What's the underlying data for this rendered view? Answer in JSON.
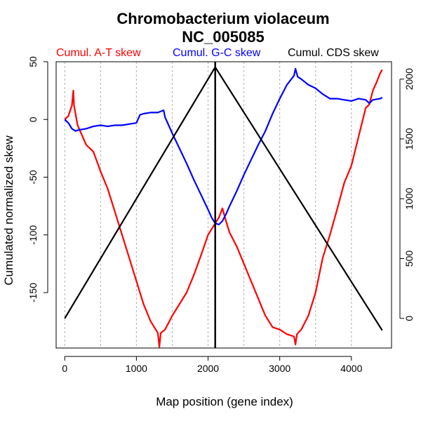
{
  "chart_data": {
    "type": "line",
    "title_line1": "Chromobacterium violaceum",
    "title_line2": "NC_005085",
    "xlabel": "Map position (gene index)",
    "ylabel": "Cumulated normalized skew",
    "xlim": [
      -120,
      4560
    ],
    "ylim": [
      -198,
      50
    ],
    "y2lim": [
      -248,
      2145
    ],
    "x_ticks": [
      0,
      1000,
      2000,
      3000,
      4000
    ],
    "y_ticks": [
      50,
      0,
      -50,
      -100,
      -150
    ],
    "y2_ticks": [
      0,
      500,
      1000,
      1500,
      2000
    ],
    "grid_x": [
      0,
      500,
      1000,
      1500,
      2000,
      2500,
      3000,
      3500,
      4000
    ],
    "origin_x": 2100,
    "colors": {
      "at": "#ff0000",
      "gc": "#0000ff",
      "cds": "#000000",
      "grid": "#b0b0b0"
    },
    "series": [
      {
        "name": "Cumul. A-T skew",
        "color": "#ff0000",
        "axis": "left",
        "points": [
          [
            0,
            0
          ],
          [
            50,
            3
          ],
          [
            100,
            12
          ],
          [
            120,
            25
          ],
          [
            130,
            12
          ],
          [
            180,
            -5
          ],
          [
            300,
            -22
          ],
          [
            400,
            -28
          ],
          [
            500,
            -45
          ],
          [
            600,
            -60
          ],
          [
            700,
            -80
          ],
          [
            800,
            -100
          ],
          [
            900,
            -120
          ],
          [
            1000,
            -140
          ],
          [
            1100,
            -160
          ],
          [
            1200,
            -175
          ],
          [
            1300,
            -185
          ],
          [
            1320,
            -197
          ],
          [
            1340,
            -185
          ],
          [
            1400,
            -182
          ],
          [
            1500,
            -170
          ],
          [
            1600,
            -160
          ],
          [
            1700,
            -150
          ],
          [
            1800,
            -135
          ],
          [
            1900,
            -118
          ],
          [
            2000,
            -100
          ],
          [
            2100,
            -90
          ],
          [
            2150,
            -85
          ],
          [
            2200,
            -77
          ],
          [
            2250,
            -88
          ],
          [
            2300,
            -98
          ],
          [
            2400,
            -110
          ],
          [
            2500,
            -125
          ],
          [
            2600,
            -140
          ],
          [
            2700,
            -155
          ],
          [
            2800,
            -170
          ],
          [
            2900,
            -180
          ],
          [
            3000,
            -182
          ],
          [
            3100,
            -186
          ],
          [
            3200,
            -188
          ],
          [
            3220,
            -195
          ],
          [
            3240,
            -186
          ],
          [
            3300,
            -182
          ],
          [
            3400,
            -170
          ],
          [
            3500,
            -150
          ],
          [
            3600,
            -120
          ],
          [
            3700,
            -100
          ],
          [
            3800,
            -78
          ],
          [
            3900,
            -55
          ],
          [
            4000,
            -40
          ],
          [
            4100,
            -15
          ],
          [
            4200,
            10
          ],
          [
            4250,
            13
          ],
          [
            4300,
            25
          ],
          [
            4350,
            32
          ],
          [
            4400,
            40
          ],
          [
            4430,
            43
          ]
        ]
      },
      {
        "name": "Cumul. G-C skew",
        "color": "#0000ff",
        "axis": "left",
        "points": [
          [
            0,
            0
          ],
          [
            50,
            -3
          ],
          [
            100,
            -8
          ],
          [
            150,
            -10
          ],
          [
            200,
            -9
          ],
          [
            300,
            -8
          ],
          [
            400,
            -6
          ],
          [
            500,
            -5
          ],
          [
            600,
            -6
          ],
          [
            700,
            -5
          ],
          [
            800,
            -5
          ],
          [
            900,
            -4
          ],
          [
            1000,
            -3
          ],
          [
            1050,
            4
          ],
          [
            1100,
            5
          ],
          [
            1200,
            6
          ],
          [
            1300,
            6
          ],
          [
            1380,
            8
          ],
          [
            1400,
            2
          ],
          [
            1500,
            -12
          ],
          [
            1600,
            -25
          ],
          [
            1700,
            -38
          ],
          [
            1800,
            -52
          ],
          [
            1900,
            -65
          ],
          [
            2000,
            -78
          ],
          [
            2050,
            -85
          ],
          [
            2100,
            -90
          ],
          [
            2150,
            -91
          ],
          [
            2200,
            -88
          ],
          [
            2250,
            -82
          ],
          [
            2300,
            -75
          ],
          [
            2400,
            -62
          ],
          [
            2500,
            -48
          ],
          [
            2600,
            -35
          ],
          [
            2700,
            -22
          ],
          [
            2800,
            -10
          ],
          [
            2900,
            5
          ],
          [
            3000,
            18
          ],
          [
            3100,
            30
          ],
          [
            3200,
            38
          ],
          [
            3220,
            44
          ],
          [
            3250,
            37
          ],
          [
            3300,
            35
          ],
          [
            3400,
            30
          ],
          [
            3500,
            27
          ],
          [
            3600,
            22
          ],
          [
            3700,
            18
          ],
          [
            3800,
            18
          ],
          [
            3900,
            17
          ],
          [
            4000,
            16
          ],
          [
            4100,
            18
          ],
          [
            4200,
            17
          ],
          [
            4250,
            14
          ],
          [
            4300,
            17
          ],
          [
            4400,
            18
          ],
          [
            4430,
            19
          ]
        ]
      },
      {
        "name": "Cumul. CDS skew",
        "color": "#000000",
        "axis": "right",
        "points": [
          [
            0,
            0
          ],
          [
            2100,
            2100
          ],
          [
            4430,
            -100
          ]
        ]
      }
    ]
  }
}
